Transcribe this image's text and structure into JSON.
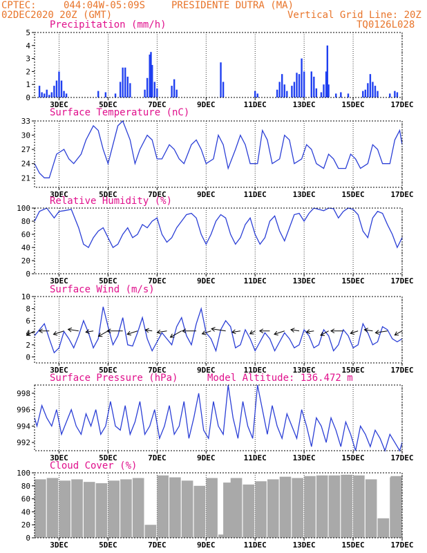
{
  "header": {
    "source": "CPTEC:",
    "coords": "044:04W-05:09S",
    "station": "PRESIDENTE DUTRA (MA)",
    "run": "02DEC2020 20Z (GMT)",
    "grid_note": "Vertical Grid Line: 20Z",
    "code": "TQ0126L028",
    "model_altitude": "Model Altitude: 136.472 m"
  },
  "colors": {
    "header": "#e8742a",
    "title": "#e0108c",
    "series": "#2b3fd6",
    "precip": "#1f3ff0",
    "cloud": "#a9a9a9"
  },
  "chart_data": [
    {
      "type": "bar",
      "title": "Precipitation (mm/h)",
      "ylim": [
        0,
        5
      ],
      "yticks": [
        0,
        1,
        2,
        3,
        4,
        5
      ],
      "x_labels": [
        "3DEC",
        "5DEC",
        "7DEC",
        "9DEC",
        "11DEC",
        "13DEC",
        "15DEC",
        "17DEC"
      ],
      "bars": [
        [
          0.2,
          0.9
        ],
        [
          0.3,
          0.4
        ],
        [
          0.4,
          0.3
        ],
        [
          0.5,
          0.6
        ],
        [
          0.6,
          0.2
        ],
        [
          0.7,
          0.4
        ],
        [
          0.8,
          0.9
        ],
        [
          0.9,
          1.3
        ],
        [
          1.0,
          2.0
        ],
        [
          1.1,
          1.3
        ],
        [
          1.2,
          0.5
        ],
        [
          1.3,
          0.3
        ],
        [
          2.6,
          0.5
        ],
        [
          2.9,
          0.4
        ],
        [
          3.3,
          0.3
        ],
        [
          3.5,
          1.2
        ],
        [
          3.6,
          2.3
        ],
        [
          3.7,
          2.3
        ],
        [
          3.8,
          1.6
        ],
        [
          3.9,
          1.1
        ],
        [
          4.5,
          0.6
        ],
        [
          4.6,
          1.5
        ],
        [
          4.7,
          3.3
        ],
        [
          4.75,
          3.5
        ],
        [
          4.8,
          2.5
        ],
        [
          4.9,
          1.2
        ],
        [
          5.0,
          0.7
        ],
        [
          5.6,
          0.9
        ],
        [
          5.7,
          1.4
        ],
        [
          5.8,
          0.6
        ],
        [
          7.6,
          2.7
        ],
        [
          7.7,
          1.2
        ],
        [
          9.0,
          0.5
        ],
        [
          9.1,
          0.3
        ],
        [
          9.9,
          0.6
        ],
        [
          10.0,
          1.2
        ],
        [
          10.1,
          1.8
        ],
        [
          10.2,
          1.0
        ],
        [
          10.3,
          0.5
        ],
        [
          10.5,
          0.9
        ],
        [
          10.6,
          1.2
        ],
        [
          10.7,
          1.9
        ],
        [
          10.8,
          1.8
        ],
        [
          10.9,
          3.0
        ],
        [
          11.0,
          2.0
        ],
        [
          11.3,
          2.0
        ],
        [
          11.4,
          1.6
        ],
        [
          11.5,
          0.7
        ],
        [
          11.7,
          0.4
        ],
        [
          11.8,
          1.0
        ],
        [
          11.9,
          2.0
        ],
        [
          11.95,
          4.0
        ],
        [
          12.0,
          1.0
        ],
        [
          12.3,
          0.3
        ],
        [
          12.5,
          0.4
        ],
        [
          12.8,
          0.3
        ],
        [
          13.4,
          0.5
        ],
        [
          13.5,
          0.6
        ],
        [
          13.6,
          1.1
        ],
        [
          13.7,
          1.8
        ],
        [
          13.8,
          1.2
        ],
        [
          13.9,
          0.9
        ],
        [
          14.0,
          0.5
        ],
        [
          14.5,
          0.3
        ],
        [
          14.7,
          0.5
        ],
        [
          14.8,
          0.4
        ]
      ]
    },
    {
      "type": "line",
      "title": "Surface Temperature (nC)",
      "ylim": [
        19,
        33
      ],
      "yticks": [
        21,
        24,
        27,
        30,
        33
      ],
      "x_labels": [
        "3DEC",
        "5DEC",
        "7DEC",
        "9DEC",
        "11DEC",
        "13DEC",
        "15DEC",
        "17DEC"
      ],
      "x": [
        0,
        0.2,
        0.4,
        0.6,
        0.9,
        1.2,
        1.4,
        1.6,
        1.9,
        2.1,
        2.4,
        2.6,
        2.8,
        3.0,
        3.2,
        3.4,
        3.6,
        3.9,
        4.1,
        4.3,
        4.6,
        4.8,
        5.0,
        5.2,
        5.5,
        5.7,
        5.9,
        6.1,
        6.4,
        6.6,
        6.8,
        7.0,
        7.3,
        7.5,
        7.7,
        7.9,
        8.2,
        8.4,
        8.6,
        8.8,
        9.1,
        9.3,
        9.5,
        9.7,
        10.0,
        10.2,
        10.4,
        10.6,
        10.9,
        11.1,
        11.3,
        11.5,
        11.8,
        12.0,
        12.2,
        12.4,
        12.7,
        12.9,
        13.1,
        13.3,
        13.6,
        13.8,
        14.0,
        14.2,
        14.5,
        14.7,
        14.9,
        15.0
      ],
      "values": [
        24,
        22,
        21,
        21,
        26,
        27,
        25,
        24,
        26,
        29,
        32,
        31,
        27,
        24,
        28,
        32,
        33,
        29,
        24,
        27,
        30,
        29,
        25,
        25,
        28,
        27,
        25,
        24,
        28,
        29,
        27,
        24,
        25,
        30,
        28,
        23,
        27,
        30,
        28,
        24,
        24,
        31,
        29,
        24,
        25,
        30,
        29,
        24,
        25,
        28,
        27,
        24,
        23,
        26,
        25,
        23,
        23,
        26,
        25,
        23,
        24,
        28,
        27,
        24,
        24,
        29,
        31,
        28
      ]
    },
    {
      "type": "line",
      "title": "Relative Humidity (%)",
      "ylim": [
        0,
        100
      ],
      "yticks": [
        0,
        20,
        40,
        60,
        80,
        100
      ],
      "x_labels": [
        "3DEC",
        "5DEC",
        "7DEC",
        "9DEC",
        "11DEC",
        "13DEC",
        "15DEC",
        "17DEC"
      ],
      "x": [
        0,
        0.2,
        0.5,
        0.8,
        1.0,
        1.2,
        1.5,
        1.8,
        2.0,
        2.2,
        2.4,
        2.6,
        2.8,
        3.0,
        3.2,
        3.4,
        3.6,
        3.8,
        4.0,
        4.2,
        4.4,
        4.6,
        4.8,
        5.0,
        5.2,
        5.4,
        5.6,
        5.8,
        6.0,
        6.2,
        6.4,
        6.6,
        6.8,
        7.0,
        7.2,
        7.4,
        7.6,
        7.8,
        8.0,
        8.2,
        8.4,
        8.6,
        8.8,
        9.0,
        9.2,
        9.4,
        9.6,
        9.8,
        10.0,
        10.2,
        10.4,
        10.6,
        10.8,
        11.0,
        11.2,
        11.4,
        11.6,
        11.8,
        12.0,
        12.2,
        12.4,
        12.6,
        12.8,
        13.0,
        13.2,
        13.4,
        13.6,
        13.8,
        14.0,
        14.2,
        14.4,
        14.6,
        14.8,
        15.0
      ],
      "values": [
        80,
        95,
        100,
        85,
        95,
        96,
        98,
        70,
        45,
        40,
        55,
        65,
        70,
        55,
        40,
        45,
        60,
        70,
        55,
        60,
        75,
        70,
        80,
        85,
        60,
        48,
        55,
        70,
        80,
        90,
        92,
        85,
        60,
        45,
        60,
        80,
        90,
        85,
        60,
        45,
        55,
        75,
        85,
        60,
        45,
        55,
        80,
        88,
        65,
        50,
        70,
        90,
        92,
        80,
        92,
        100,
        98,
        96,
        100,
        99,
        85,
        95,
        100,
        98,
        90,
        65,
        55,
        85,
        95,
        92,
        75,
        60,
        40,
        55
      ]
    },
    {
      "type": "line",
      "title": "Surface Wind (m/s)",
      "ylim": [
        -1,
        10
      ],
      "yticks": [
        0,
        2,
        4,
        6,
        8,
        10
      ],
      "x_labels": [
        "3DEC",
        "5DEC",
        "7DEC",
        "9DEC",
        "11DEC",
        "13DEC",
        "15DEC",
        "17DEC"
      ],
      "x": [
        0,
        0.2,
        0.4,
        0.6,
        0.8,
        1.0,
        1.2,
        1.4,
        1.6,
        1.8,
        2.0,
        2.2,
        2.4,
        2.6,
        2.8,
        3.0,
        3.2,
        3.4,
        3.6,
        3.8,
        4.0,
        4.2,
        4.4,
        4.6,
        4.8,
        5.0,
        5.2,
        5.4,
        5.6,
        5.8,
        6.0,
        6.2,
        6.4,
        6.6,
        6.8,
        7.0,
        7.2,
        7.4,
        7.6,
        7.8,
        8.0,
        8.2,
        8.4,
        8.6,
        8.8,
        9.0,
        9.2,
        9.4,
        9.6,
        9.8,
        10.0,
        10.2,
        10.4,
        10.6,
        10.8,
        11.0,
        11.2,
        11.4,
        11.6,
        11.8,
        12.0,
        12.2,
        12.4,
        12.6,
        12.8,
        13.0,
        13.2,
        13.4,
        13.6,
        13.8,
        14.0,
        14.2,
        14.4,
        14.6,
        14.8,
        15.0
      ],
      "values": [
        3.5,
        4.5,
        5.5,
        3.0,
        0.7,
        1.5,
        4.2,
        3.0,
        1.5,
        3.5,
        6.0,
        4.0,
        1.5,
        3.0,
        8.3,
        5.0,
        2.0,
        3.5,
        6.5,
        2.0,
        1.8,
        4.0,
        6.5,
        3.0,
        1.0,
        2.5,
        4.0,
        3.0,
        2.0,
        5.0,
        6.5,
        3.5,
        2.0,
        5.5,
        8.0,
        4.0,
        3.0,
        1.0,
        4.5,
        6.0,
        5.0,
        1.5,
        2.0,
        4.5,
        3.0,
        1.0,
        2.5,
        4.0,
        3.0,
        1.0,
        2.5,
        4.0,
        3.0,
        1.5,
        2.0,
        4.5,
        3.5,
        1.5,
        2.0,
        4.5,
        3.5,
        1.0,
        2.0,
        4.5,
        3.5,
        1.5,
        2.0,
        5.5,
        4.0,
        2.0,
        2.5,
        5.0,
        4.5,
        3.0,
        2.5,
        3.0
      ]
    },
    {
      "type": "line",
      "title": "Surface Pressure (hPa)",
      "ylim": [
        991,
        999
      ],
      "yticks": [
        992,
        994,
        996,
        998
      ],
      "x_labels": [
        "3DEC",
        "5DEC",
        "7DEC",
        "9DEC",
        "11DEC",
        "13DEC",
        "15DEC",
        "17DEC"
      ],
      "x": [
        0,
        0.1,
        0.3,
        0.5,
        0.7,
        0.9,
        1.1,
        1.3,
        1.5,
        1.7,
        1.9,
        2.1,
        2.3,
        2.5,
        2.7,
        2.9,
        3.1,
        3.3,
        3.5,
        3.7,
        3.9,
        4.1,
        4.3,
        4.5,
        4.7,
        4.9,
        5.1,
        5.3,
        5.5,
        5.7,
        5.9,
        6.1,
        6.3,
        6.5,
        6.7,
        6.9,
        7.1,
        7.3,
        7.5,
        7.7,
        7.9,
        8.1,
        8.3,
        8.5,
        8.7,
        8.9,
        9.1,
        9.3,
        9.5,
        9.7,
        9.9,
        10.1,
        10.3,
        10.5,
        10.7,
        10.9,
        11.1,
        11.3,
        11.5,
        11.7,
        11.9,
        12.1,
        12.3,
        12.5,
        12.7,
        12.9,
        13.1,
        13.3,
        13.5,
        13.7,
        13.9,
        14.1,
        14.3,
        14.5,
        14.7,
        14.9,
        15.0
      ],
      "values": [
        995,
        994,
        996.5,
        995,
        994,
        996,
        993,
        994.5,
        996,
        994,
        993,
        995.5,
        994,
        996,
        993,
        994,
        997,
        994,
        993.5,
        996.5,
        993,
        994.5,
        997,
        993,
        994,
        996,
        992.5,
        994,
        996.5,
        993,
        994,
        997,
        992.5,
        995,
        998,
        993.5,
        992.5,
        997,
        994,
        993,
        999,
        995,
        992.5,
        997,
        994,
        992.5,
        999,
        996,
        993,
        996.5,
        994,
        992.5,
        995.5,
        994,
        992.5,
        996,
        994,
        991.5,
        995,
        994,
        992,
        995,
        993.5,
        991.5,
        994.5,
        993,
        991,
        994,
        993,
        991.5,
        993.5,
        992.5,
        991,
        993,
        992,
        991,
        992
      ]
    },
    {
      "type": "bar",
      "title": "Cloud Cover (%)",
      "ylim": [
        0,
        100
      ],
      "yticks": [
        0,
        20,
        40,
        60,
        80,
        100
      ],
      "x_labels": [
        "3DEC",
        "5DEC",
        "7DEC",
        "9DEC",
        "11DEC",
        "13DEC",
        "15DEC",
        "17DEC"
      ],
      "bars": [
        [
          0,
          90
        ],
        [
          0.5,
          92
        ],
        [
          1.0,
          88
        ],
        [
          1.5,
          90
        ],
        [
          2.0,
          86
        ],
        [
          2.5,
          84
        ],
        [
          3.0,
          88
        ],
        [
          3.5,
          90
        ],
        [
          4.0,
          92
        ],
        [
          4.5,
          20
        ],
        [
          5.0,
          96
        ],
        [
          5.5,
          93
        ],
        [
          6.0,
          88
        ],
        [
          6.5,
          80
        ],
        [
          7.0,
          92
        ],
        [
          7.5,
          5
        ],
        [
          7.7,
          85
        ],
        [
          8.0,
          92
        ],
        [
          8.5,
          82
        ],
        [
          9.0,
          87
        ],
        [
          9.5,
          90
        ],
        [
          10.0,
          94
        ],
        [
          10.5,
          92
        ],
        [
          11.0,
          95
        ],
        [
          11.5,
          96
        ],
        [
          12.0,
          96
        ],
        [
          12.5,
          97
        ],
        [
          13.0,
          96
        ],
        [
          13.5,
          90
        ],
        [
          14.0,
          30
        ],
        [
          14.5,
          93
        ],
        [
          15.0,
          95
        ]
      ]
    }
  ]
}
